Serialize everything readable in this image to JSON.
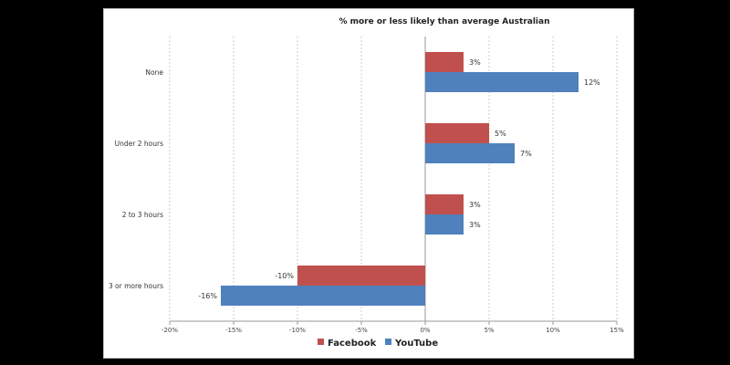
{
  "chart_data": {
    "type": "bar",
    "orientation": "horizontal",
    "title": "% more or less likely than average Australian",
    "categories": [
      "None",
      "Under 2 hours",
      "2 to 3 hours",
      "3 or more hours"
    ],
    "series": [
      {
        "name": "Facebook",
        "color": "#c0504d",
        "values": [
          3,
          5,
          3,
          -10
        ],
        "labels": [
          "3%",
          "5%",
          "3%",
          "-10%"
        ]
      },
      {
        "name": "YouTube",
        "color": "#4f81bd",
        "values": [
          12,
          7,
          3,
          -16
        ],
        "labels": [
          "12%",
          "7%",
          "3%",
          "-16%"
        ]
      }
    ],
    "xlim": [
      -20,
      15
    ],
    "xticks": [
      -20,
      -15,
      -10,
      -5,
      0,
      5,
      10,
      15
    ],
    "xtick_labels": [
      "-20%",
      "-15%",
      "-10%",
      "-5%",
      "0%",
      "5%",
      "10%",
      "15%"
    ],
    "grid": true,
    "legend": "bottom"
  }
}
